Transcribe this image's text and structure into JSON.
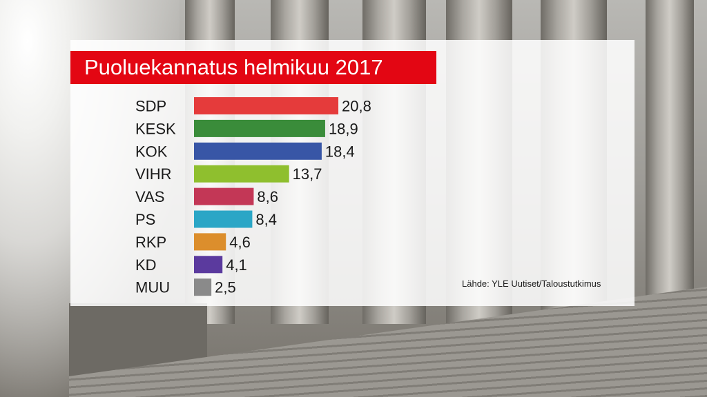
{
  "chart_data": {
    "type": "bar",
    "orientation": "horizontal",
    "title": "Puoluekannatus helmikuu 2017",
    "categories": [
      "SDP",
      "KESK",
      "KOK",
      "VIHR",
      "VAS",
      "PS",
      "RKP",
      "KD",
      "MUU"
    ],
    "values": [
      20.8,
      18.9,
      18.4,
      13.7,
      8.6,
      8.4,
      4.6,
      4.1,
      2.5
    ],
    "value_labels": [
      "20,8",
      "18,9",
      "18,4",
      "13,7",
      "8,6",
      "8,4",
      "4,6",
      "4,1",
      "2,5"
    ],
    "colors": [
      "#e53b3b",
      "#3a8c3a",
      "#3856a6",
      "#8fbf2e",
      "#c33756",
      "#2ba6c6",
      "#dc8e2c",
      "#5b3a9e",
      "#8a8a8a"
    ],
    "xlabel": "",
    "ylabel": "",
    "grid": false,
    "legend": "none"
  },
  "source": "Lähde: YLE Uutiset/Taloustutkimus",
  "colors": {
    "title_background": "#e30613",
    "title_text": "#ffffff"
  }
}
